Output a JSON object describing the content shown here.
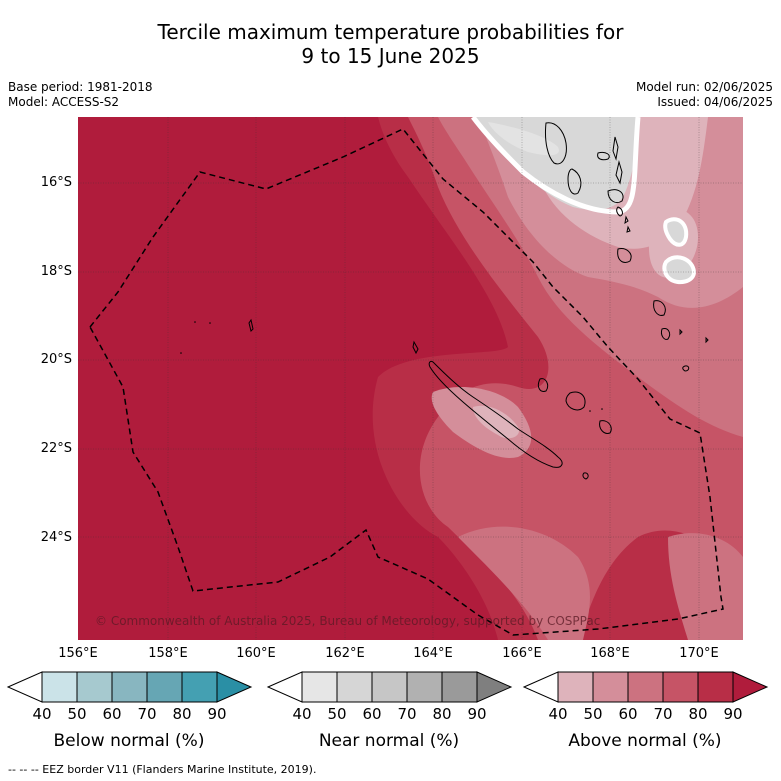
{
  "title_line1": "Tercile maximum temperature probabilities for",
  "title_line2": "9 to 15 June 2025",
  "base_period": "Base period: 1981-2018",
  "model": "Model: ACCESS-S2",
  "model_run": "Model run: 02/06/2025",
  "issued": "Issued: 04/06/2025",
  "lat_ticks": [
    "16°S",
    "18°S",
    "20°S",
    "22°S",
    "24°S"
  ],
  "lon_ticks": [
    "156°E",
    "158°E",
    "160°E",
    "162°E",
    "164°E",
    "166°E",
    "168°E",
    "170°E"
  ],
  "copyright": "© Commonwealth of Australia 2025, Bureau of Meteorology, supported by COSPPac",
  "colorbars": [
    {
      "label": "Below normal (%)",
      "ticks": [
        "40",
        "50",
        "60",
        "70",
        "80",
        "90"
      ],
      "colors": [
        "#ffffff",
        "#cbe3e8",
        "#a6c9cf",
        "#88b6c0",
        "#66a6b4",
        "#44a0b2",
        "#2a8fa5"
      ]
    },
    {
      "label": "Near normal (%)",
      "ticks": [
        "40",
        "50",
        "60",
        "70",
        "80",
        "90"
      ],
      "colors": [
        "#ffffff",
        "#e6e6e6",
        "#d6d6d6",
        "#c6c6c6",
        "#b1b1b1",
        "#9a9a9a",
        "#7f7f7f"
      ]
    },
    {
      "label": "Above normal (%)",
      "ticks": [
        "40",
        "50",
        "60",
        "70",
        "80",
        "90"
      ],
      "colors": [
        "#ffffff",
        "#deb3bb",
        "#d48e9a",
        "#cc7280",
        "#c65466",
        "#b82e47",
        "#b01c3c"
      ]
    }
  ],
  "footer": "--  --  -- EEZ border V11 (Flanders Marine Institute, 2019).",
  "colors": {
    "above_90": "#b01c3c",
    "above_80": "#b82e47",
    "above_70": "#c65466",
    "above_60": "#cc7280",
    "above_50": "#d48e9a",
    "above_40": "#deb3bb",
    "near_50": "#e3e3e3",
    "near_40": "#d8d8d8"
  }
}
